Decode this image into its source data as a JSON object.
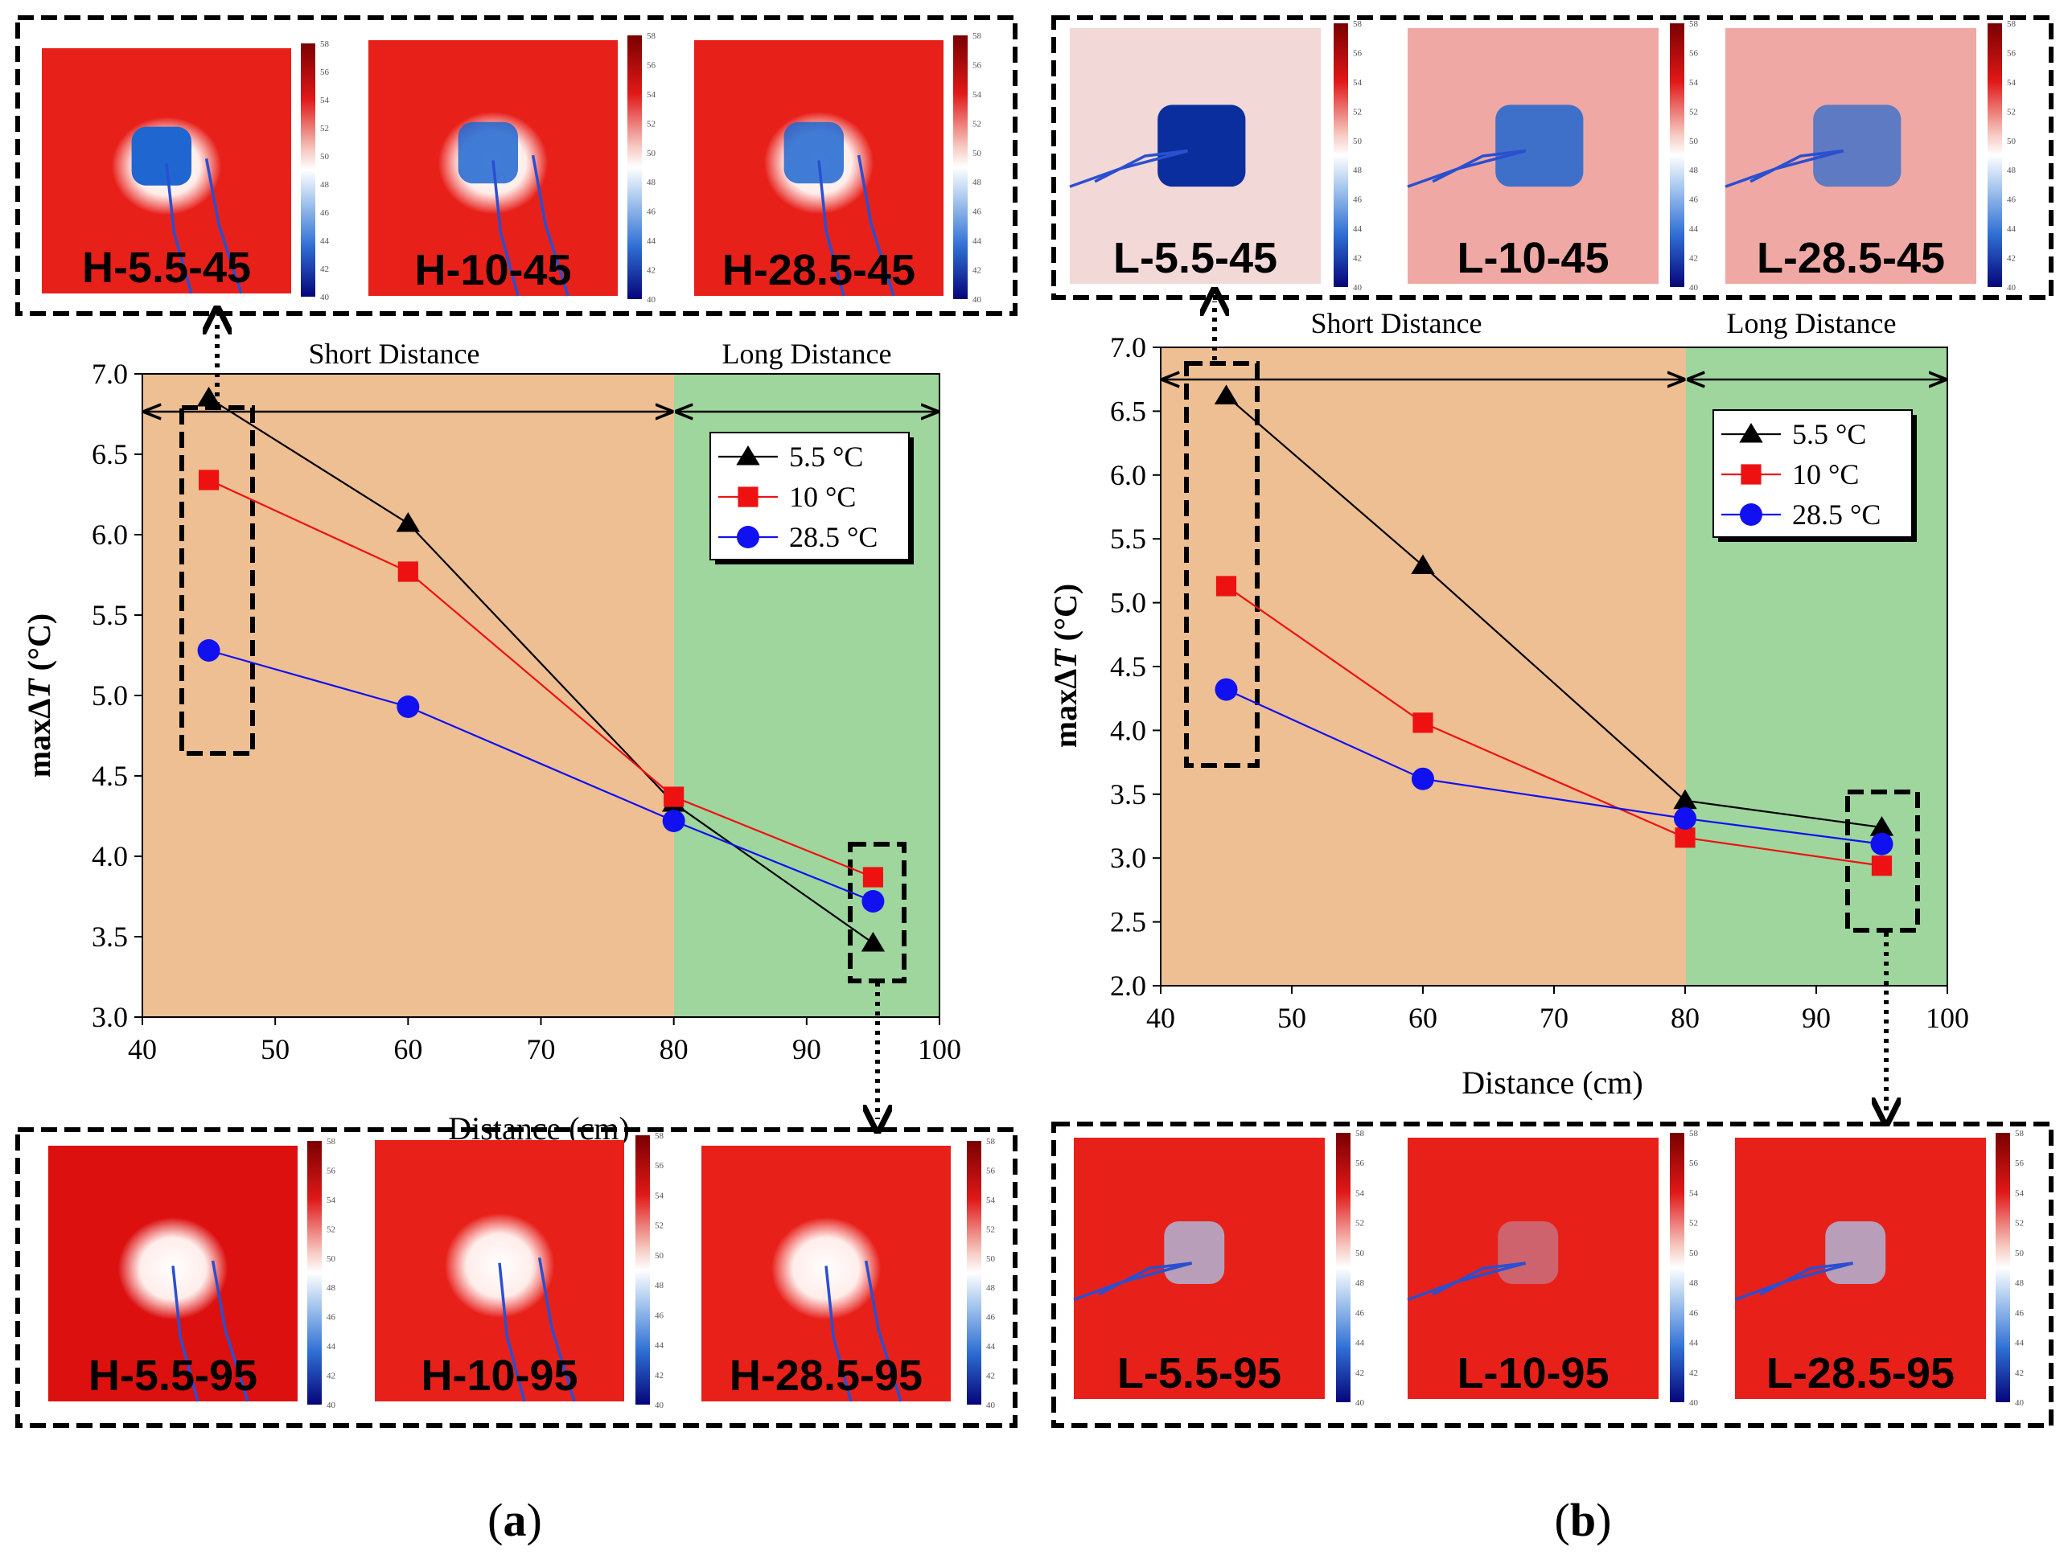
{
  "colors": {
    "short_bg": "#EDBF93",
    "long_bg": "#9ED69E",
    "series": [
      "#000000",
      "#EE1111",
      "#1010F0"
    ],
    "thermal_red": "#E8201A",
    "thermal_blue": "#1F66D0"
  },
  "colorbar_ticks": [
    "58",
    "56",
    "54",
    "52",
    "50",
    "48",
    "46",
    "44",
    "42",
    "40"
  ],
  "panels": [
    {
      "id": "a",
      "caption_open": "(",
      "caption_letter": "a",
      "caption_close": ")",
      "region_short": "Short Distance",
      "region_long": "Long Distance",
      "top_images": [
        "H-5.5-45",
        "H-10-45",
        "H-28.5-45"
      ],
      "bottom_images": [
        "H-5.5-95",
        "H-10-95",
        "H-28.5-95"
      ],
      "icons": [
        "dotted-up-arrow-icon",
        "dotted-down-arrow-icon",
        "double-arrow-icon"
      ]
    },
    {
      "id": "b",
      "caption_open": "(",
      "caption_letter": "b",
      "caption_close": ")",
      "region_short": "Short Distance",
      "region_long": "Long Distance",
      "top_images": [
        "L-5.5-45",
        "L-10-45",
        "L-28.5-45"
      ],
      "bottom_images": [
        "L-5.5-95",
        "L-10-95",
        "L-28.5-95"
      ],
      "icons": [
        "dotted-up-arrow-icon",
        "dotted-down-arrow-icon",
        "double-arrow-icon"
      ]
    }
  ],
  "chart_data": [
    {
      "type": "line",
      "xlabel": "Distance (cm)",
      "ylabel_prefix": "maxΔ",
      "ylabel_italic": "T",
      "ylabel_suffix": " (°C)",
      "xlim": [
        40,
        100
      ],
      "ylim": [
        3.0,
        7.0
      ],
      "xticks": [
        "40",
        "50",
        "60",
        "70",
        "80",
        "90",
        "100"
      ],
      "yticks": [
        "3.0",
        "3.5",
        "4.0",
        "4.5",
        "5.0",
        "5.5",
        "6.0",
        "6.5",
        "7.0"
      ],
      "regions": [
        {
          "label": "Short Distance",
          "from": 40,
          "to": 80
        },
        {
          "label": "Long Distance",
          "from": 80,
          "to": 100
        }
      ],
      "x": [
        45,
        60,
        80,
        95
      ],
      "series": [
        {
          "name": "5.5 °C",
          "marker": "triangle",
          "values": [
            6.85,
            6.07,
            4.33,
            3.46
          ]
        },
        {
          "name": "10 °C",
          "marker": "square",
          "values": [
            6.34,
            5.77,
            4.37,
            3.87
          ]
        },
        {
          "name": "28.5 °C",
          "marker": "circle",
          "values": [
            5.28,
            4.93,
            4.22,
            3.72
          ]
        }
      ],
      "legend": "top-right"
    },
    {
      "type": "line",
      "xlabel": "Distance (cm)",
      "ylabel_prefix": "maxΔ",
      "ylabel_italic": "T",
      "ylabel_suffix": " (°C)",
      "xlim": [
        40,
        100
      ],
      "ylim": [
        2.0,
        7.0
      ],
      "xticks": [
        "40",
        "50",
        "60",
        "70",
        "80",
        "90",
        "100"
      ],
      "yticks": [
        "2.0",
        "2.5",
        "3.0",
        "3.5",
        "4.0",
        "4.5",
        "5.0",
        "5.5",
        "6.0",
        "6.5",
        "7.0"
      ],
      "regions": [
        {
          "label": "Short Distance",
          "from": 40,
          "to": 80
        },
        {
          "label": "Long Distance",
          "from": 80,
          "to": 100
        }
      ],
      "x": [
        45,
        60,
        80,
        95
      ],
      "series": [
        {
          "name": "5.5 °C",
          "marker": "triangle",
          "values": [
            6.62,
            5.29,
            3.45,
            3.24
          ]
        },
        {
          "name": "10 °C",
          "marker": "square",
          "values": [
            5.13,
            4.06,
            3.16,
            2.94
          ]
        },
        {
          "name": "28.5 °C",
          "marker": "circle",
          "values": [
            4.32,
            3.62,
            3.31,
            3.11
          ]
        }
      ],
      "legend": "top-right"
    }
  ]
}
